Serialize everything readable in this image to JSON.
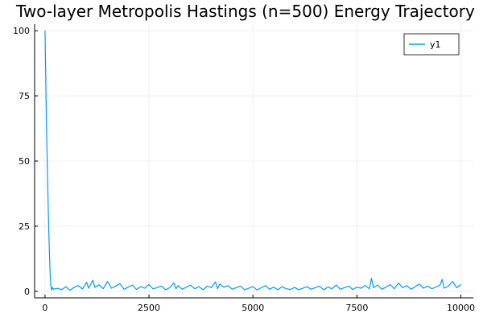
{
  "chart_data": {
    "type": "line",
    "title": "Two-layer Metropolis Hastings (n=500) Energy Trajectory",
    "xlabel": "",
    "ylabel": "",
    "xlim": [
      -250,
      10300
    ],
    "ylim": [
      -2.5,
      102.5
    ],
    "x_ticks": [
      0,
      2500,
      5000,
      7500,
      10000
    ],
    "x_tick_labels": [
      "0",
      "2500",
      "5000",
      "7500",
      "10000"
    ],
    "y_ticks": [
      0,
      25,
      50,
      75,
      100
    ],
    "y_tick_labels": [
      "0",
      "25",
      "50",
      "75",
      "100"
    ],
    "grid": true,
    "legend_position": "top-right",
    "series": [
      {
        "name": "y1",
        "color": "#009af9",
        "x": [
          0,
          20,
          40,
          60,
          80,
          100,
          120,
          140,
          160,
          180,
          200,
          300,
          400,
          500,
          600,
          700,
          800,
          900,
          1000,
          1050,
          1100,
          1150,
          1200,
          1300,
          1400,
          1500,
          1600,
          1700,
          1800,
          1900,
          2000,
          2100,
          2200,
          2300,
          2400,
          2500,
          2600,
          2700,
          2800,
          2900,
          3000,
          3100,
          3150,
          3200,
          3300,
          3400,
          3500,
          3600,
          3700,
          3800,
          3900,
          4000,
          4100,
          4150,
          4200,
          4300,
          4400,
          4500,
          4600,
          4700,
          4800,
          4900,
          5000,
          5100,
          5200,
          5300,
          5400,
          5500,
          5600,
          5700,
          5800,
          5900,
          6000,
          6100,
          6200,
          6300,
          6400,
          6500,
          6600,
          6700,
          6800,
          6900,
          7000,
          7100,
          7200,
          7300,
          7400,
          7500,
          7600,
          7700,
          7800,
          7850,
          7900,
          8000,
          8100,
          8200,
          8300,
          8400,
          8500,
          8600,
          8700,
          8800,
          8900,
          9000,
          9100,
          9200,
          9300,
          9400,
          9500,
          9550,
          9600,
          9700,
          9800,
          9900,
          10000
        ],
        "values": [
          100,
          80,
          60,
          45,
          30,
          18,
          8,
          2,
          0.5,
          1.5,
          0.8,
          1.2,
          0.6,
          1.8,
          0.4,
          1.5,
          2.2,
          0.9,
          3.5,
          1.2,
          2.8,
          4.2,
          1.5,
          2.5,
          1.0,
          3.8,
          1.2,
          2.0,
          3.0,
          0.8,
          1.6,
          2.4,
          0.7,
          1.8,
          1.2,
          2.6,
          0.9,
          1.5,
          2.0,
          0.6,
          1.4,
          3.2,
          1.0,
          2.2,
          0.8,
          1.6,
          2.4,
          1.0,
          1.8,
          0.6,
          2.0,
          1.4,
          3.6,
          1.0,
          2.8,
          1.6,
          2.2,
          0.8,
          1.4,
          2.0,
          0.6,
          1.2,
          1.8,
          0.5,
          1.4,
          2.2,
          0.8,
          1.6,
          0.6,
          1.8,
          1.0,
          0.7,
          1.5,
          0.6,
          1.2,
          1.8,
          0.8,
          1.4,
          2.0,
          0.6,
          1.6,
          1.0,
          2.4,
          0.8,
          1.4,
          2.0,
          0.7,
          1.6,
          1.2,
          2.2,
          1.0,
          5.0,
          1.4,
          2.4,
          0.8,
          1.6,
          2.6,
          1.0,
          3.2,
          1.4,
          2.2,
          0.8,
          1.8,
          2.8,
          1.2,
          2.0,
          1.0,
          1.6,
          2.4,
          4.6,
          1.2,
          2.0,
          3.8,
          1.4,
          2.6
        ]
      }
    ]
  }
}
